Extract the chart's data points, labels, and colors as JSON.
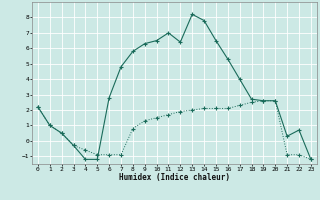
{
  "xlabel": "Humidex (Indice chaleur)",
  "background_color": "#cce9e5",
  "line_color": "#1a6b5a",
  "grid_color": "#ffffff",
  "line1_x": [
    0,
    1,
    2,
    3,
    4,
    5,
    6,
    7,
    8,
    9,
    10,
    11,
    12,
    13,
    14,
    15,
    16,
    17,
    18,
    19,
    20,
    21,
    22,
    23
  ],
  "line1_y": [
    2.2,
    1.0,
    0.5,
    -0.3,
    -1.2,
    -1.2,
    2.8,
    4.8,
    5.8,
    6.3,
    6.5,
    7.0,
    6.4,
    8.2,
    7.8,
    6.5,
    5.3,
    4.0,
    2.7,
    2.6,
    2.6,
    0.3,
    0.7,
    -1.2
  ],
  "line2_x": [
    0,
    1,
    2,
    3,
    4,
    5,
    6,
    7,
    8,
    9,
    10,
    11,
    12,
    13,
    14,
    15,
    16,
    17,
    18,
    19,
    20,
    21,
    22,
    23
  ],
  "line2_y": [
    2.2,
    1.0,
    0.5,
    -0.3,
    -0.6,
    -0.9,
    -0.9,
    -0.9,
    0.8,
    1.3,
    1.5,
    1.7,
    1.9,
    2.0,
    2.1,
    2.1,
    2.1,
    2.3,
    2.5,
    2.6,
    2.6,
    -0.9,
    -0.9,
    -1.2
  ],
  "xlim": [
    -0.5,
    23.5
  ],
  "ylim": [
    -1.5,
    9.0
  ],
  "yticks": [
    -1,
    0,
    1,
    2,
    3,
    4,
    5,
    6,
    7,
    8
  ],
  "xticks": [
    0,
    1,
    2,
    3,
    4,
    5,
    6,
    7,
    8,
    9,
    10,
    11,
    12,
    13,
    14,
    15,
    16,
    17,
    18,
    19,
    20,
    21,
    22,
    23
  ]
}
